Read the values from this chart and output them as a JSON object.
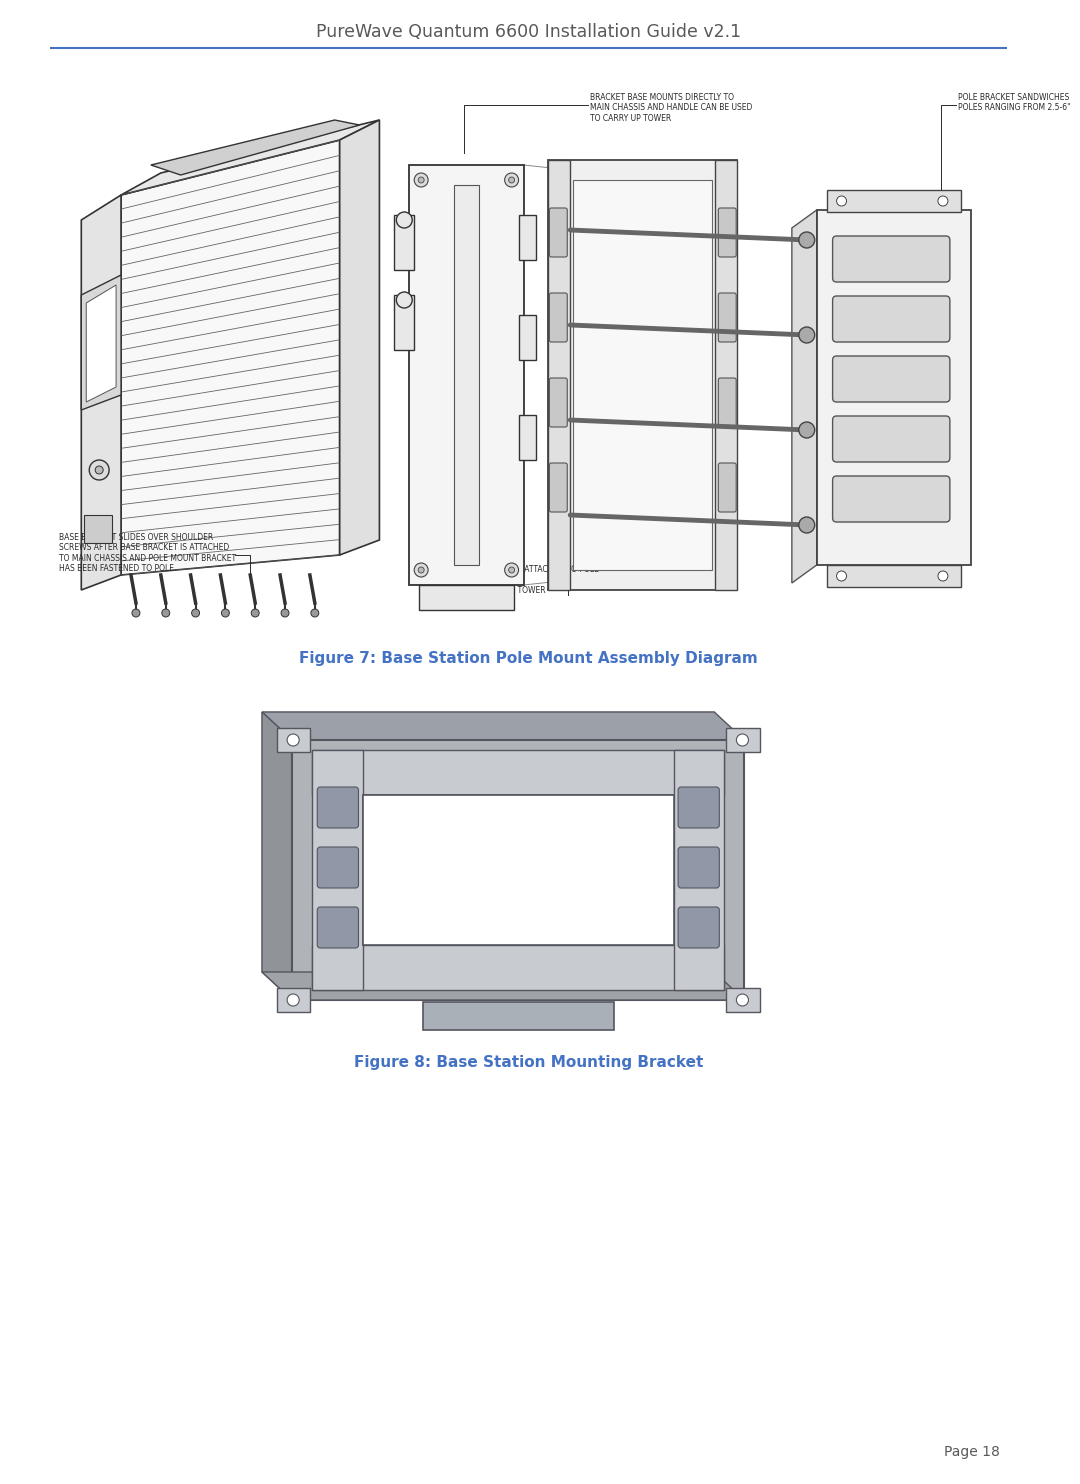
{
  "header_title": "PureWave Quantum 6600 Installation Guide v2.1",
  "header_line_color": "#4472C4",
  "header_title_color": "#595959",
  "header_title_fontsize": 12.5,
  "fig7_caption": "Figure 7: Base Station Pole Mount Assembly Diagram",
  "fig8_caption": "Figure 8: Base Station Mounting Bracket",
  "caption_color": "#4472C4",
  "caption_fontsize": 11,
  "page_number": "Page 18",
  "page_number_color": "#595959",
  "page_number_fontsize": 10,
  "background_color": "#ffffff",
  "fig_width": 10.37,
  "fig_height": 14.64,
  "ann_color": "#2a2a2a",
  "ann_fontsize": 5.5,
  "fig7_note1": "BRACKET BASE MOUNTS DIRECTLY TO\nMAIN CHASSIS AND HANDLE CAN BE USED\nTO CARRY UP TOWER",
  "fig7_note2": "POLE BRACKET SANDWICHES\nPOLES RANGING FROM 2.5-6\"",
  "fig7_note3": "BASE BRACKET SLIDES OVER SHOULDER\nSCREWS AFTER BASE BRACKET IS ATTACHED\nTO MAIN CHASSIS AND POLE MOUNT BRACKET\nHAS BEEN FASTENED TO POLE.",
  "fig7_note4": "CARRIAGE BOLTS ARE ATTACHED TO POLE\nMOUNT BRACKETS\nPRIOR TO CLIMBING TOWER"
}
